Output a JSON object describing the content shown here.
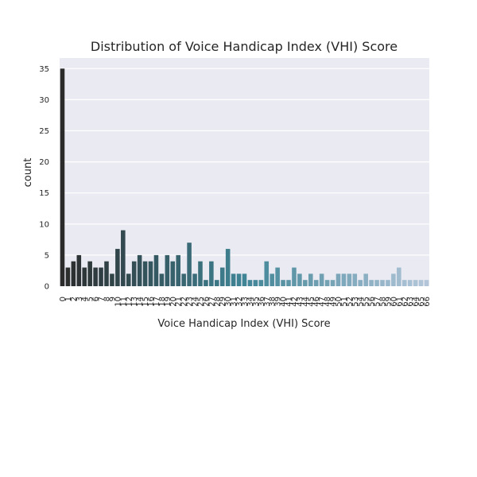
{
  "chart_data": {
    "type": "bar",
    "title": "Distribution of Voice Handicap Index (VHI) Score",
    "xlabel": "Voice Handicap Index (VHI) Score",
    "ylabel": "count",
    "ylim": [
      0,
      36.7
    ],
    "yticks": [
      0,
      5,
      10,
      15,
      20,
      25,
      30,
      35
    ],
    "grid": true,
    "categories": [
      "0",
      "1",
      "2",
      "3",
      "4",
      "5",
      "6",
      "7",
      "8",
      "9",
      "10",
      "11",
      "12",
      "13",
      "14",
      "15",
      "16",
      "17",
      "18",
      "19",
      "20",
      "21",
      "22",
      "23",
      "24",
      "25",
      "26",
      "27",
      "28",
      "29",
      "30",
      "31",
      "32",
      "33",
      "34",
      "35",
      "36",
      "37",
      "38",
      "39",
      "40",
      "41",
      "42",
      "43",
      "44",
      "45",
      "46",
      "47",
      "48",
      "49",
      "50",
      "51",
      "52",
      "53",
      "54",
      "55",
      "56",
      "57",
      "58",
      "59",
      "60",
      "61",
      "62",
      "63",
      "64",
      "65",
      "66"
    ],
    "tick_labels": [
      "0",
      "1",
      "2",
      "3",
      "4",
      "5",
      "6",
      "7",
      "8",
      "9",
      "10",
      "11",
      "12",
      "13",
      "14",
      "15",
      "16",
      "17",
      "18",
      "19",
      "20",
      "21",
      "22",
      "23",
      "24",
      "25",
      "26",
      "27",
      "28",
      "29",
      "30",
      "31",
      "32",
      "33",
      "34",
      "35",
      "36",
      "37",
      "38",
      "39",
      "40",
      "41",
      "42",
      "43",
      "44",
      "45",
      "46",
      "47",
      "48",
      "49",
      "50",
      "51",
      "52",
      "53",
      "54",
      "55",
      "56",
      "57",
      "58",
      "59",
      "60",
      "61",
      "62",
      "63",
      "64",
      "65",
      "66"
    ],
    "values": [
      35,
      3,
      4,
      5,
      3,
      4,
      3,
      3,
      4,
      2,
      6,
      9,
      2,
      4,
      5,
      4,
      4,
      5,
      2,
      5,
      4,
      5,
      2,
      7,
      2,
      4,
      1,
      4,
      1,
      3,
      6,
      2,
      2,
      2,
      1,
      1,
      1,
      4,
      2,
      3,
      1,
      1,
      3,
      2,
      1,
      2,
      1,
      2,
      1,
      1,
      2,
      2,
      2,
      2,
      1,
      2,
      1,
      1,
      1,
      1,
      2,
      3,
      1,
      1,
      1,
      1,
      1
    ],
    "palette": {
      "start": "#2b2b2b",
      "mid": "#3f8596",
      "end": "#b3c6d9",
      "background": "#eaeaf2",
      "grid": "#ffffff"
    }
  }
}
